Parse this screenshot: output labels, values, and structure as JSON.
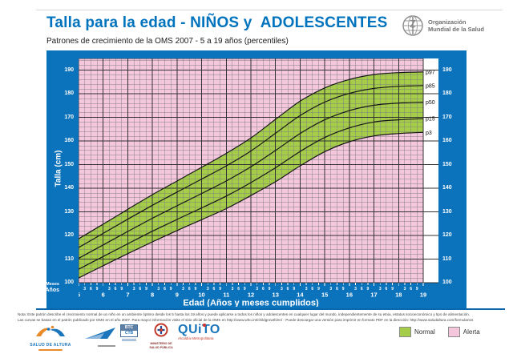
{
  "header": {
    "title": "Talla para la edad - NIÑOS y  ADOLESCENTES",
    "subtitle": "Patrones de crecimiento de la OMS 2007 - 5 a 19 años (percentiles)",
    "who": {
      "line1": "Organización",
      "line2": "Mundial de la Salud"
    }
  },
  "chart_data": {
    "type": "line",
    "title": "Talla para la edad - NIÑOS y ADOLESCENTES",
    "xlabel": "Edad (Años y meses cumplidos)",
    "ylabel": "Talla (cm)",
    "x_years": [
      5,
      6,
      7,
      8,
      9,
      10,
      11,
      12,
      13,
      14,
      15,
      16,
      17,
      18,
      19
    ],
    "xlim": [
      5,
      19
    ],
    "ylim": [
      100,
      195
    ],
    "y_major_ticks": [
      100,
      110,
      120,
      130,
      140,
      150,
      160,
      170,
      180,
      190
    ],
    "y_minor_step_cm": 2,
    "x_minor_step_months": 3,
    "x_minor_month_labels": [
      "3",
      "6",
      "9"
    ],
    "axis_row_labels": {
      "months": "Meses",
      "years": "Años"
    },
    "grid": true,
    "series": [
      {
        "name": "p97",
        "values": [
          118.6,
          124.8,
          131.1,
          137.3,
          143.1,
          148.9,
          154.8,
          161.3,
          169.2,
          176.9,
          182.5,
          186.1,
          188.2,
          189.0,
          189.3
        ]
      },
      {
        "name": "p85",
        "values": [
          114.9,
          120.9,
          126.9,
          132.8,
          138.4,
          143.9,
          149.5,
          155.8,
          163.3,
          170.8,
          176.5,
          180.2,
          182.3,
          183.2,
          183.5
        ]
      },
      {
        "name": "p50",
        "values": [
          110.3,
          116.0,
          121.7,
          127.3,
          132.6,
          137.8,
          143.1,
          149.1,
          156.0,
          163.2,
          169.0,
          172.9,
          175.2,
          176.1,
          176.5
        ]
      },
      {
        "name": "p15",
        "values": [
          105.7,
          111.1,
          116.5,
          121.8,
          126.8,
          131.7,
          136.7,
          142.4,
          148.7,
          155.6,
          161.5,
          165.6,
          168.1,
          169.0,
          169.5
        ]
      },
      {
        "name": "p3",
        "values": [
          102.0,
          107.2,
          112.3,
          117.3,
          122.1,
          126.7,
          131.4,
          136.9,
          142.8,
          149.5,
          155.5,
          159.7,
          162.2,
          163.2,
          163.7
        ]
      }
    ],
    "band": {
      "lower": "p3",
      "upper": "p97",
      "meaning": "Normal"
    },
    "colors": {
      "panel_blue": "#0B72BC",
      "plot_pink": "#F4C7DC",
      "band_green": "#A5CD4A",
      "grid_minor": "#7a7a7a",
      "grid_major": "#333333",
      "curve": "#161616",
      "axis_text": "#ffffff"
    }
  },
  "legend": {
    "items": [
      {
        "label": "Normal",
        "color": "#A5CD4A"
      },
      {
        "label": "Alerta",
        "color": "#F4C7DC"
      }
    ]
  },
  "footnote": {
    "line1": "Nota: Este patrón describe el crecimiento normal de un niño en un ambiente óptimo desde los 5 hasta los 19 años y puede aplicarse a todos los niños y adolescentes en cualquier lugar del mundo, independientemente de su etnia, estatus socioeconómico y tipo de alimentación.",
    "line2": "Las curvas se basan en el patrón publicado por OMS en el año 2007. Para mayor información visite el sitio oficial de la OMS en http://www.who.int/childgrowth/en/ - Puede descargar una versión para imprimir en formato PDF en la dirección: http://www.saludaltura.com/formularios"
  },
  "footer_logos": {
    "salud_de_altura": {
      "label": "SALUD DE ALTURA"
    },
    "btc": {
      "top": "BTC",
      "bottom": "CTB"
    },
    "msp": {
      "label1": "MINISTERIO DE",
      "label2": "SALUD PÚBLICA"
    },
    "quito": {
      "label": "QUiTO",
      "sub": "Alcaldía Metropolitana"
    }
  }
}
